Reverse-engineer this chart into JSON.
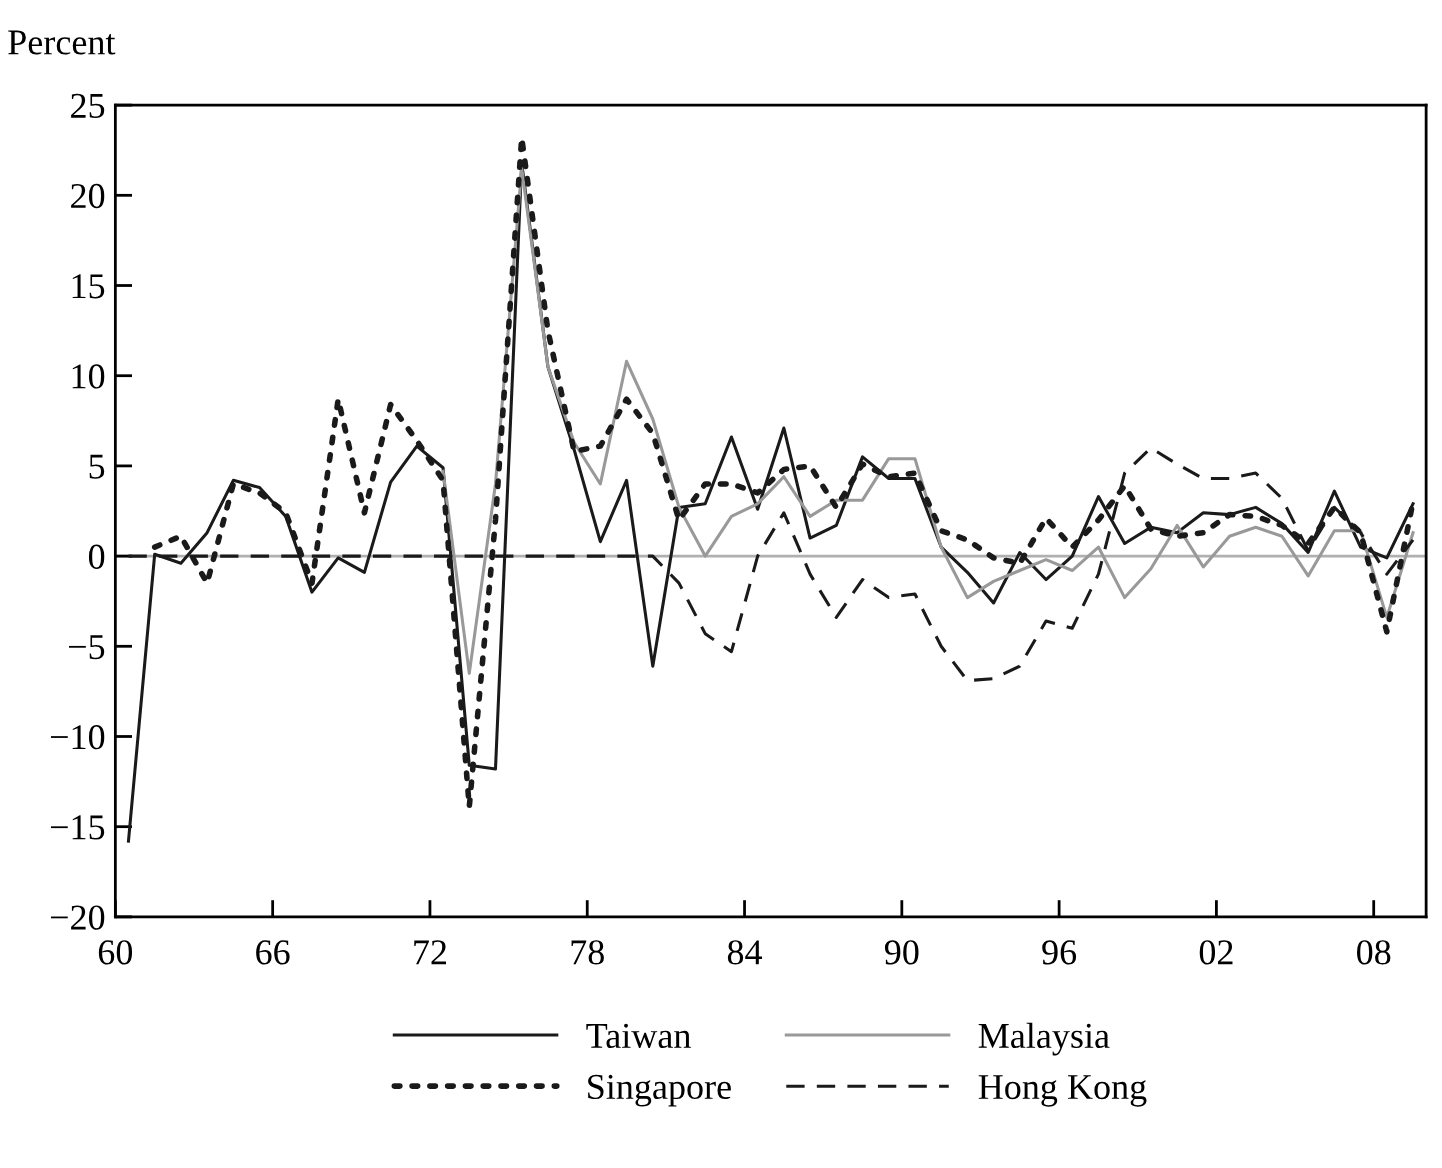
{
  "chart_data": {
    "type": "line",
    "ylabel": "Percent",
    "x": [
      1960.5,
      1961.5,
      1962.5,
      1963.5,
      1964.5,
      1965.5,
      1966.5,
      1967.5,
      1968.5,
      1969.5,
      1970.5,
      1971.5,
      1972.5,
      1973.5,
      1974.5,
      1975.5,
      1976.5,
      1977.5,
      1978.5,
      1979.5,
      1980.5,
      1981.5,
      1982.5,
      1983.5,
      1984.5,
      1985.5,
      1986.5,
      1987.5,
      1988.5,
      1989.5,
      1990.5,
      1991.5,
      1992.5,
      1993.5,
      1994.5,
      1995.5,
      1996.5,
      1997.5,
      1998.5,
      1999.5,
      2000.5,
      2001.5,
      2002.5,
      2003.5,
      2004.5,
      2005.5,
      2006.5,
      2007.5,
      2008.5,
      2009.5
    ],
    "series": [
      {
        "name": "Taiwan",
        "color": "#1a1a1a",
        "line_style": "solid",
        "values": [
          -15.8,
          0.1,
          -0.4,
          1.3,
          4.2,
          3.8,
          2.2,
          -2.0,
          -0.1,
          -0.9,
          4.1,
          6.1,
          4.9,
          -11.6,
          -11.8,
          21.8,
          10.5,
          5.9,
          0.8,
          4.2,
          -6.1,
          2.7,
          2.9,
          6.6,
          2.6,
          7.1,
          1.0,
          1.7,
          5.5,
          4.3,
          4.3,
          0.5,
          -0.9,
          -2.6,
          0.2,
          -1.3,
          0.0,
          3.3,
          0.7,
          1.6,
          1.3,
          2.4,
          2.3,
          2.7,
          1.8,
          0.2,
          3.6,
          0.5,
          -0.1,
          2.9
        ]
      },
      {
        "name": "Malaysia",
        "color": "#999999",
        "line_style": "solid",
        "values": [
          null,
          null,
          null,
          null,
          null,
          null,
          null,
          null,
          null,
          null,
          null,
          null,
          4.7,
          -6.5,
          4.0,
          21.5,
          10.5,
          6.3,
          4.0,
          10.8,
          7.6,
          2.7,
          0.0,
          2.2,
          2.9,
          4.4,
          2.2,
          3.1,
          3.1,
          5.4,
          5.4,
          0.5,
          -2.3,
          -1.4,
          -0.8,
          -0.2,
          -0.8,
          0.5,
          -2.3,
          -0.7,
          1.7,
          -0.6,
          1.1,
          1.6,
          1.1,
          -1.1,
          1.4,
          1.4,
          -3.4,
          1.3
        ]
      },
      {
        "name": "Singapore",
        "color": "#1a1a1a",
        "line_style": "dotted",
        "values": [
          null,
          0.5,
          1.1,
          -1.5,
          4.0,
          3.5,
          2.4,
          -1.5,
          8.7,
          2.4,
          8.4,
          6.4,
          4.2,
          -13.9,
          2.0,
          23.2,
          12.5,
          5.8,
          6.1,
          8.7,
          6.8,
          2.0,
          4.0,
          4.0,
          3.5,
          4.8,
          5.0,
          2.7,
          5.1,
          4.4,
          4.6,
          1.4,
          0.9,
          -0.1,
          -0.4,
          2.1,
          0.5,
          2.0,
          3.9,
          1.5,
          1.1,
          1.3,
          2.3,
          2.2,
          1.7,
          0.7,
          2.7,
          1.3,
          -4.2,
          3.0
        ]
      },
      {
        "name": "Hong Kong",
        "color": "#1a1a1a",
        "line_style": "dashed",
        "values": [
          0,
          0,
          0,
          0,
          0,
          0,
          0,
          0,
          0,
          0,
          0,
          0,
          0,
          0,
          0,
          0,
          0,
          0,
          0,
          0,
          0,
          -1.5,
          -4.3,
          -5.3,
          0.0,
          2.4,
          -1.0,
          -3.4,
          -1.3,
          -2.3,
          -2.1,
          -5.0,
          -6.9,
          -6.8,
          -6.1,
          -3.6,
          -4.0,
          -1.0,
          4.6,
          6.0,
          5.1,
          4.3,
          4.3,
          4.6,
          3.2,
          0.3,
          2.7,
          1.3,
          -1.0,
          0.9
        ]
      }
    ],
    "xlim": [
      1960,
      2010
    ],
    "xticks": [
      {
        "value": 1960,
        "label": "60"
      },
      {
        "value": 1966,
        "label": "66"
      },
      {
        "value": 1972,
        "label": "72"
      },
      {
        "value": 1978,
        "label": "78"
      },
      {
        "value": 1984,
        "label": "84"
      },
      {
        "value": 1990,
        "label": "90"
      },
      {
        "value": 1996,
        "label": "96"
      },
      {
        "value": 2002,
        "label": "02"
      },
      {
        "value": 2008,
        "label": "08"
      }
    ],
    "ylim": [
      -20,
      25
    ],
    "yticks": [
      {
        "value": -20,
        "label": "−20"
      },
      {
        "value": -15,
        "label": "−15"
      },
      {
        "value": -10,
        "label": "−10"
      },
      {
        "value": -5,
        "label": "−5"
      },
      0,
      5,
      10,
      15,
      20,
      25
    ],
    "ref_lines": [
      {
        "axis": "y",
        "value": 0,
        "color": "#b0b0b0"
      }
    ],
    "grid": false,
    "legend": "bottom"
  }
}
